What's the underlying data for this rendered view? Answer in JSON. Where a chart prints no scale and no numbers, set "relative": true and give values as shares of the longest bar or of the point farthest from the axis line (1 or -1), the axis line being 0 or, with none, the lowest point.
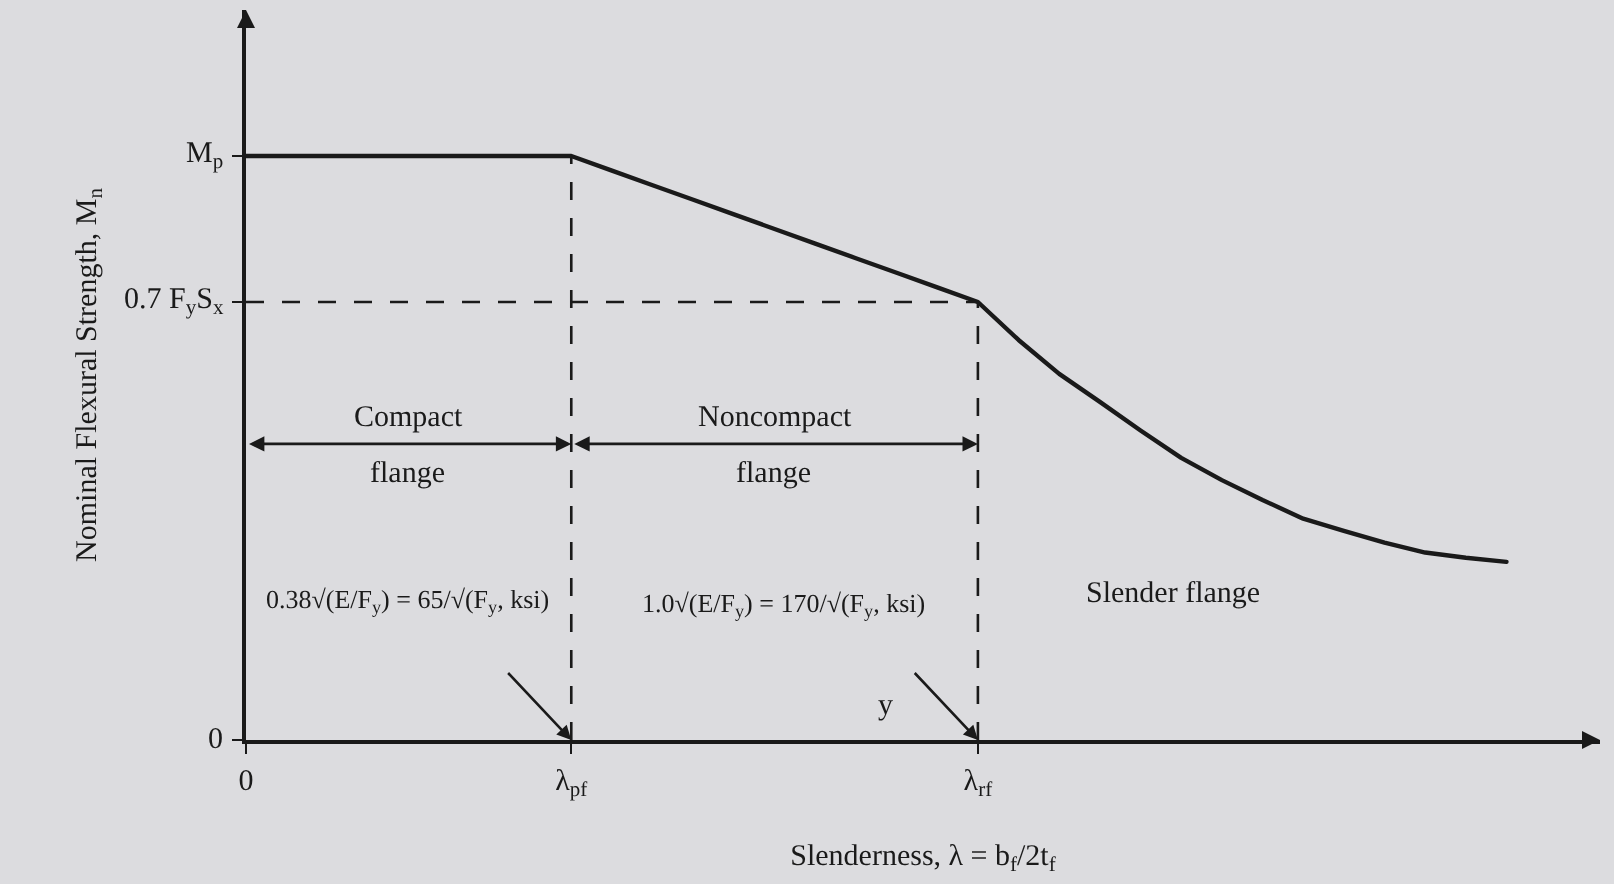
{
  "chart_data": {
    "type": "line",
    "relative": true,
    "xlabel": "Slenderness, λ = b$_{f}$/2t$_{f}$",
    "ylabel": "Nominal Flexural Strength, M$_{n}$",
    "categories": [
      "0",
      null,
      null,
      null,
      null,
      null,
      null,
      null,
      "λ$_{pf}$",
      null,
      null,
      null,
      null,
      null,
      null,
      null,
      null,
      null,
      "λ$_{rf}$",
      null,
      null,
      null,
      null,
      null,
      null,
      null,
      null,
      null,
      null,
      null,
      null,
      null
    ],
    "series": [
      {
        "color": "#1a1a1a",
        "values": [
          1,
          1,
          1,
          1,
          1,
          1,
          1,
          1,
          1,
          0.975,
          0.95,
          0.925,
          0.9,
          0.875,
          0.85,
          0.825,
          0.8,
          0.775,
          0.75,
          0.685,
          0.627,
          0.579,
          0.53,
          0.483,
          0.445,
          0.411,
          0.379,
          0.358,
          0.338,
          0.321,
          0.312,
          0.305
        ]
      }
    ],
    "ref_lines": [
      {
        "axis": "y",
        "value": 0.75,
        "label": "0.7 F$_{y}$S$_{x}$",
        "line_style": "dashed",
        "color": "#1a1a1a"
      },
      {
        "axis": "x",
        "value": "λ$_{pf}$",
        "line_style": "dashed",
        "color": "#1a1a1a"
      },
      {
        "axis": "x",
        "value": "λ$_{rf}$",
        "line_style": "dashed",
        "color": "#1a1a1a"
      }
    ],
    "annotations": [
      "Compact\nflange",
      "Noncompact\nflange",
      "0.38√(E/F$_{y}$) = 65/√(F$_{y}$, ksi)",
      "1.0√(E/F$_{y}$) = 170/√(F$_{y}$, ksi)",
      "y",
      "Slender flange",
      "M$_{p}$",
      "0"
    ]
  }
}
